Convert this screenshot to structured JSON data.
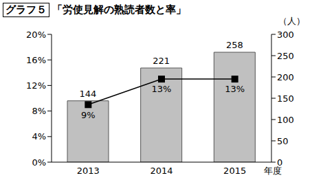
{
  "chart_data": {
    "type": "bar",
    "title": "グラフ５",
    "subtitle": "「労使見解の熟読者数と率」",
    "x_label": "年度",
    "y2_label": "（人）",
    "categories": [
      "2013",
      "2014",
      "2015"
    ],
    "series": [
      {
        "type": "bar",
        "color": "#c0c0c0",
        "axis": "y2",
        "values": [
          144,
          221,
          258
        ],
        "data_labels": true
      },
      {
        "type": "line",
        "color": "#000000",
        "marker": "square",
        "line_style": "solid",
        "values": [
          9,
          13,
          13
        ],
        "value_labels": [
          "9%",
          "13%",
          "13%"
        ],
        "data_labels": true
      }
    ],
    "ylim": [
      0,
      20
    ],
    "yticks": [
      {
        "value": 0,
        "label": "0%"
      },
      {
        "value": 4,
        "label": "4%"
      },
      {
        "value": 8,
        "label": "8%"
      },
      {
        "value": 12,
        "label": "12%"
      },
      {
        "value": 16,
        "label": "16%"
      },
      {
        "value": 20,
        "label": "20%"
      }
    ],
    "y2lim": [
      0,
      300
    ],
    "y2ticks": [
      0,
      50,
      100,
      150,
      200,
      250,
      300
    ],
    "grid": false
  }
}
